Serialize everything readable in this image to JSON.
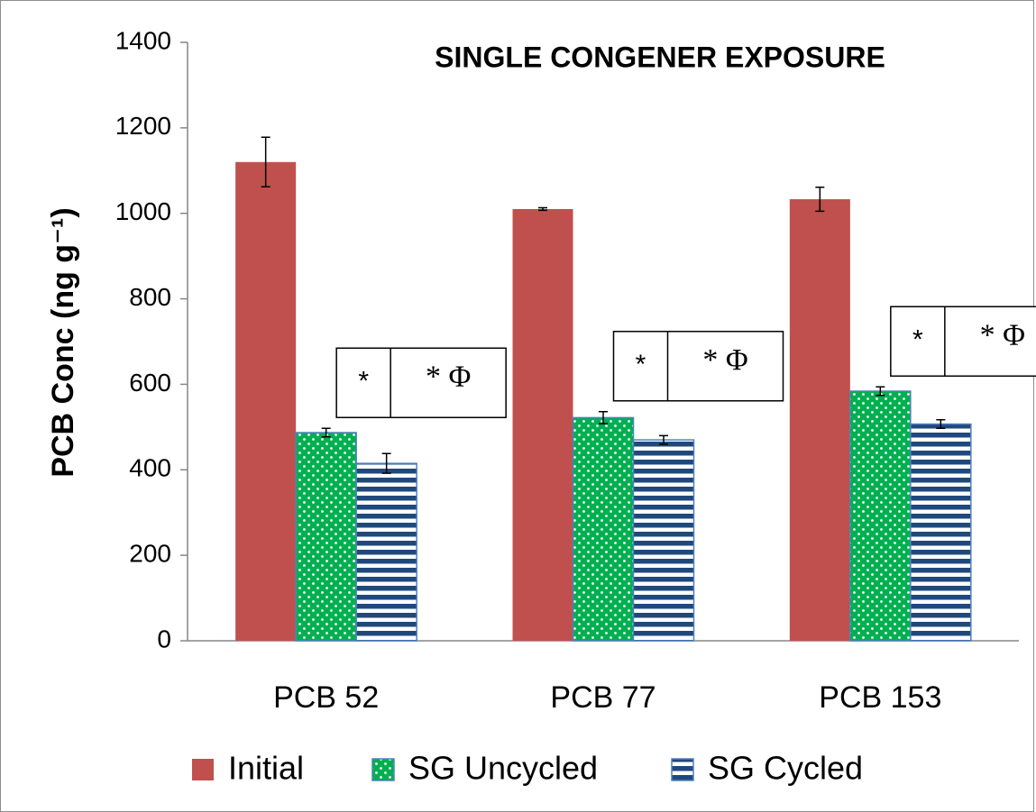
{
  "chart_data": {
    "type": "bar",
    "title": "SINGLE CONGENER EXPOSURE",
    "y_label": "PCB Conc (ng g⁻¹)",
    "categories": [
      "PCB 52",
      "PCB 77",
      "PCB 153"
    ],
    "series": [
      {
        "name": "Initial",
        "color": "#c0504d",
        "values": [
          1120,
          1010,
          1033
        ],
        "errors": [
          58,
          3,
          28
        ]
      },
      {
        "name": "SG Uncycled",
        "color": "#00b050",
        "values": [
          487,
          522,
          584
        ],
        "errors": [
          10,
          14,
          10
        ]
      },
      {
        "name": "SG Cycled",
        "color": "#1f497d",
        "values": [
          415,
          470,
          507
        ],
        "errors": [
          23,
          10,
          10
        ]
      }
    ],
    "annotations": [
      [
        "*",
        "* Φ"
      ],
      [
        "*",
        "* Φ"
      ],
      [
        "*",
        "* Φ"
      ]
    ],
    "ylim": [
      0,
      1400
    ],
    "yticks": [
      0,
      200,
      400,
      600,
      800,
      1000,
      1200,
      1400
    ],
    "legend": "bottom"
  }
}
